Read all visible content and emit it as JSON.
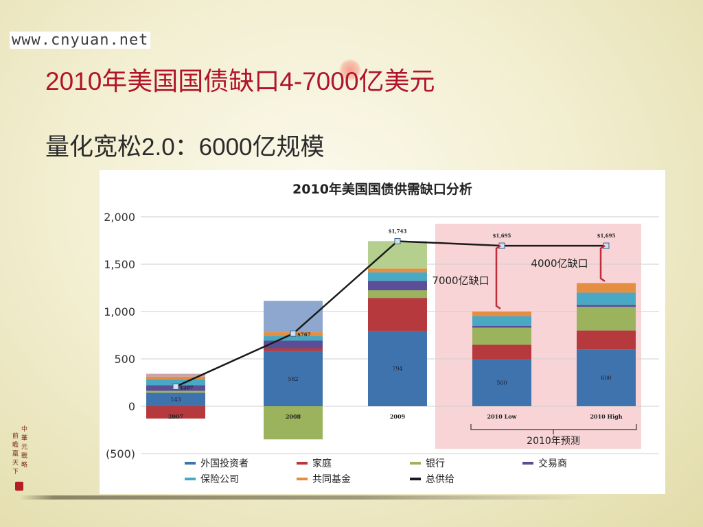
{
  "site_url": "www.cnyuan.net",
  "slide": {
    "title": "2010年美国国债缺口4-7000亿美元",
    "subtitle": "量化宽松2.0：6000亿规模"
  },
  "seal_text": [
    "中",
    "華",
    "元",
    "戰",
    "略",
    "前",
    "瞻",
    "羸",
    "天",
    "下"
  ],
  "colors": {
    "title": "#b0142a",
    "forecast_band": "#f8d4d6",
    "forecast_arrow": "#c22b3a"
  },
  "chart_data": {
    "type": "bar",
    "stacked": true,
    "title": "2010年美国国债供需缺口分析",
    "categories": [
      "2007",
      "2008",
      "2009",
      "2010 Low",
      "2010 High"
    ],
    "ylim": [
      -500,
      2000
    ],
    "yticks": [
      "2,000",
      "1,500",
      "1,000",
      "500",
      "0",
      "(500)"
    ],
    "ytick_values": [
      2000,
      1500,
      1000,
      500,
      0,
      -500
    ],
    "grid": true,
    "legend_position": "bottom",
    "series": [
      {
        "name": "外国投资者",
        "color": "#3e73ad",
        "values": [
          143,
          582,
          794,
          500,
          600
        ]
      },
      {
        "name": "家庭",
        "color": "#b63a3d",
        "values": [
          -130,
          30,
          350,
          150,
          200
        ]
      },
      {
        "name": "银行",
        "color": "#9bb35d",
        "values": [
          20,
          -350,
          80,
          180,
          250
        ]
      },
      {
        "name": "交易商",
        "color": "#5b4d96",
        "values": [
          60,
          80,
          100,
          20,
          20
        ]
      },
      {
        "name": "保险公司",
        "color": "#49a8c4",
        "values": [
          60,
          50,
          90,
          100,
          130
        ]
      },
      {
        "name": "共同基金",
        "color": "#e58d40",
        "values": [
          30,
          40,
          40,
          50,
          100
        ]
      }
    ],
    "extra_stack": {
      "values": [
        30,
        330,
        290,
        0,
        0
      ],
      "colors": [
        "#c8a4ac",
        "#8ea7cf",
        "#b5cf8e",
        "#ffffff",
        "#ffffff"
      ]
    },
    "total_supply": {
      "name": "总供给",
      "color": "#1a1a1a",
      "values": [
        207,
        767,
        1743,
        1695,
        1695
      ],
      "labels": [
        "$207",
        "$767",
        "$1,743",
        "$1,695",
        "$1,695"
      ]
    },
    "bar_value_labels": [
      "143",
      "582",
      "794",
      "500",
      "600"
    ],
    "category_labels": [
      "2007",
      "2008",
      "2009",
      "2010 Low",
      "2010 High"
    ],
    "annotations": {
      "gap_low": "7000亿缺口",
      "gap_high": "4000亿缺口",
      "forecast": "2010年预测"
    }
  }
}
